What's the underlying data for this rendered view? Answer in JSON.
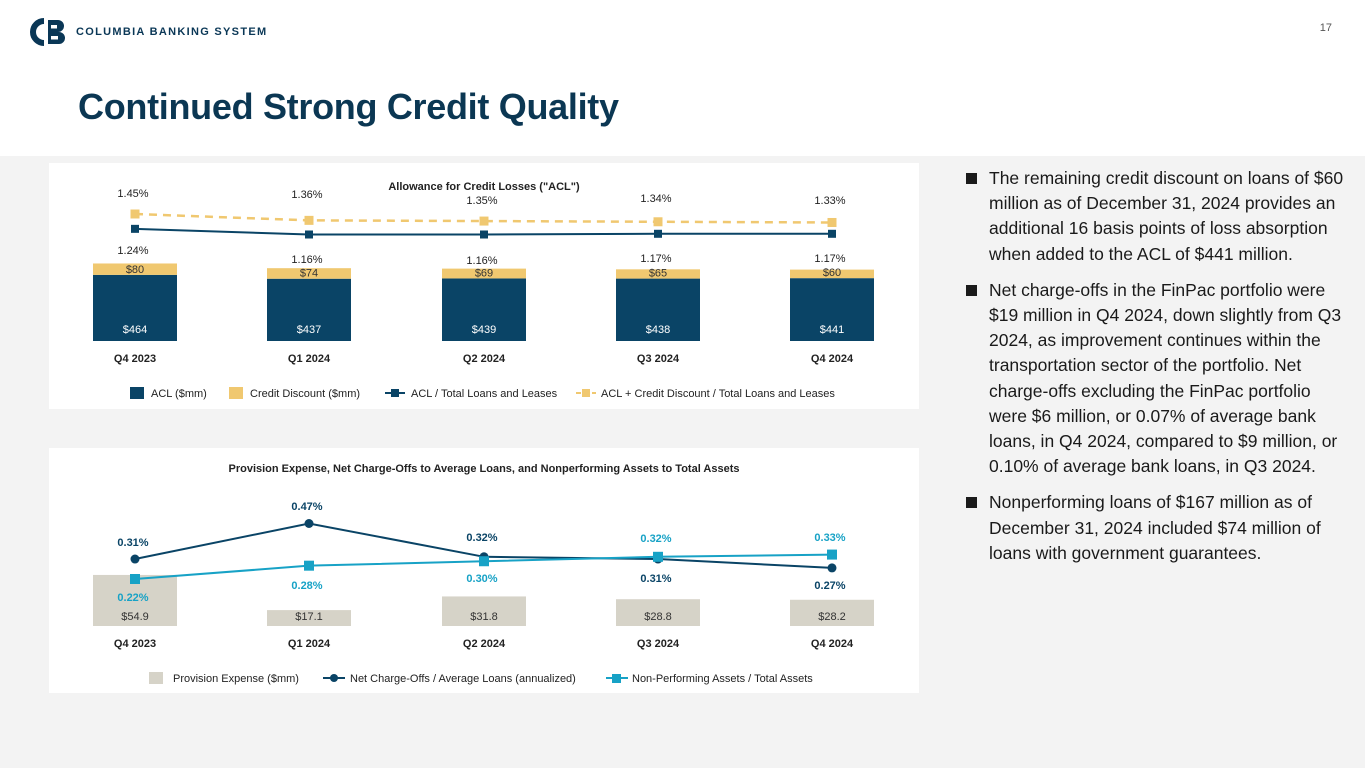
{
  "header": {
    "logo_text": "COLUMBIA BANKING SYSTEM",
    "page_number": "17",
    "title": "Continued Strong Credit Quality",
    "brand_colors": {
      "navy": "#0a3756",
      "gold": "#f0c870"
    }
  },
  "chart_data": [
    {
      "type": "bar",
      "stacked": true,
      "title": "Allowance for Credit Losses (\"ACL\")",
      "categories": [
        "Q4 2023",
        "Q1 2024",
        "Q2 2024",
        "Q3 2024",
        "Q4 2024"
      ],
      "bar_labels": {
        "acl": [
          "$464",
          "$437",
          "$439",
          "$438",
          "$441"
        ],
        "discount": [
          "$80",
          "$74",
          "$69",
          "$65",
          "$60"
        ]
      },
      "line_labels": {
        "acl_ratio": [
          "1.24%",
          "1.16%",
          "1.16%",
          "1.17%",
          "1.17%"
        ],
        "acl_discount_ratio": [
          "1.45%",
          "1.36%",
          "1.35%",
          "1.34%",
          "1.33%"
        ]
      },
      "series": [
        {
          "name": "ACL ($mm)",
          "kind": "bar",
          "color": "#0a4466",
          "values": [
            464,
            437,
            439,
            438,
            441
          ]
        },
        {
          "name": "Credit Discount ($mm)",
          "kind": "bar",
          "color": "#f0c870",
          "values": [
            80,
            74,
            69,
            65,
            60
          ]
        },
        {
          "name": "ACL / Total Loans and Leases",
          "kind": "line",
          "color": "#0a4466",
          "values": [
            1.24,
            1.16,
            1.16,
            1.17,
            1.17
          ]
        },
        {
          "name": "ACL + Credit Discount / Total Loans and Leases",
          "kind": "line-dashed",
          "color": "#f0c870",
          "values": [
            1.45,
            1.36,
            1.35,
            1.34,
            1.33
          ]
        }
      ],
      "legend_position": "bottom"
    },
    {
      "type": "bar",
      "title": "Provision Expense, Net Charge-Offs to Average Loans, and Nonperforming Assets to Total Assets",
      "categories": [
        "Q4 2023",
        "Q1 2024",
        "Q2 2024",
        "Q3 2024",
        "Q4 2024"
      ],
      "bar_labels": {
        "provision": [
          "$54.9",
          "$17.1",
          "$31.8",
          "$28.8",
          "$28.2"
        ]
      },
      "line_labels": {
        "nco": [
          "0.31%",
          "0.47%",
          "0.32%",
          "0.31%",
          "0.27%"
        ],
        "npa": [
          "0.22%",
          "0.28%",
          "0.30%",
          "0.32%",
          "0.33%"
        ]
      },
      "series": [
        {
          "name": "Provision Expense ($mm)",
          "kind": "bar",
          "color": "#d6d3c8",
          "values": [
            54.9,
            17.1,
            31.8,
            28.8,
            28.2
          ]
        },
        {
          "name": "Net Charge-Offs / Average Loans (annualized)",
          "kind": "line",
          "color": "#0a4466",
          "values": [
            0.31,
            0.47,
            0.32,
            0.31,
            0.27
          ]
        },
        {
          "name": "Non-Performing Assets / Total Assets",
          "kind": "line",
          "color": "#17a2c6",
          "values": [
            0.22,
            0.28,
            0.3,
            0.32,
            0.33
          ]
        }
      ],
      "legend_position": "bottom"
    }
  ],
  "bullets": [
    "The remaining credit discount on loans of $60 million as of December 31, 2024 provides an additional 16 basis points of loss absorption when added to the ACL of $441 million.",
    "Net charge-offs in the FinPac portfolio were $19 million in Q4 2024, down slightly from Q3 2024, as improvement continues within the transportation sector of the portfolio. Net charge-offs excluding the FinPac portfolio were $6 million, or 0.07% of average bank loans, in Q4 2024, compared to $9 million, or 0.10% of average bank loans, in Q3 2024.",
    "Nonperforming loans of $167 million as of December 31, 2024 included $74 million of loans with government guarantees."
  ]
}
